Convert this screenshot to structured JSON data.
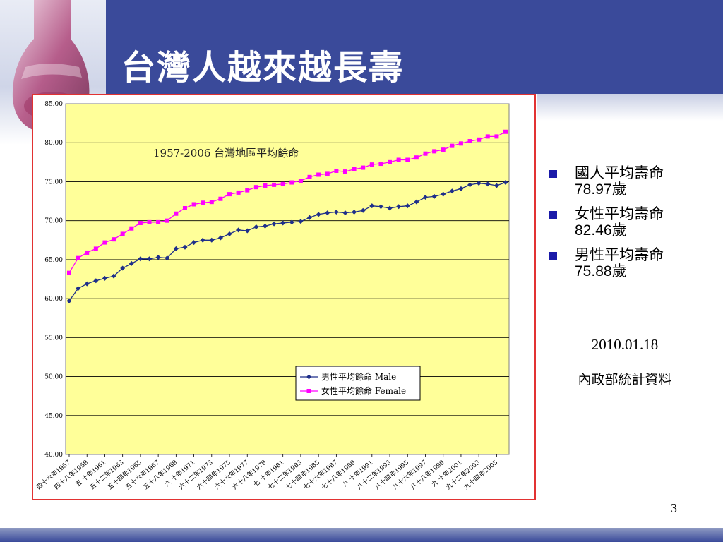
{
  "slide": {
    "title": "台灣人越來越長壽",
    "page_number": "3",
    "date": "2010.01.18",
    "source": "內政部統計資料"
  },
  "stats": [
    {
      "label": "國人平均壽命",
      "value": "78.97",
      "unit": "歲"
    },
    {
      "label": "女性平均壽命",
      "value": "82.46",
      "unit": "歲"
    },
    {
      "label": "男性平均壽命",
      "value": "75.88",
      "unit": "歲"
    }
  ],
  "colors": {
    "banner": "#3a4a9a",
    "plot_background": "#ffff99",
    "male_series": "#1f2f8a",
    "female_series": "#ff00ff",
    "frame": "#e23232",
    "bullet": "#1a1aa8"
  },
  "chart_data": {
    "type": "line",
    "title": "1957-2006 台灣地區平均餘命",
    "xlabel": "",
    "ylabel": "",
    "ylim": [
      40,
      85
    ],
    "yticks": [
      "40.00",
      "45.00",
      "50.00",
      "55.00",
      "60.00",
      "65.00",
      "70.00",
      "75.00",
      "80.00",
      "85.00"
    ],
    "grid": true,
    "legend_position": "bottom-center",
    "x": [
      1957,
      1958,
      1959,
      1960,
      1961,
      1962,
      1963,
      1964,
      1965,
      1966,
      1967,
      1968,
      1969,
      1970,
      1971,
      1972,
      1973,
      1974,
      1975,
      1976,
      1977,
      1978,
      1979,
      1980,
      1981,
      1982,
      1983,
      1984,
      1985,
      1986,
      1987,
      1988,
      1989,
      1990,
      1991,
      1992,
      1993,
      1994,
      1995,
      1996,
      1997,
      1998,
      1999,
      2000,
      2001,
      2002,
      2003,
      2004,
      2005,
      2006
    ],
    "xtick_labels": [
      "四十六年1957",
      "四十八年1959",
      "五 十年1961",
      "五十二年1963",
      "五十四年1965",
      "五十六年1967",
      "五十八年1969",
      "六 十年1971",
      "六十二年1973",
      "六十四年1975",
      "六十六年1977",
      "六十八年1979",
      "七 十年1981",
      "七十二年1983",
      "七十四年1985",
      "七十六年1987",
      "七十八年1989",
      "八 十年1991",
      "八十二年1993",
      "八十四年1995",
      "八十六年1997",
      "八十八年1999",
      "九 十年2001",
      "九十二年2003",
      "九十四年2005"
    ],
    "series": [
      {
        "name": "男性平均餘命 Male",
        "values": [
          59.7,
          61.3,
          61.9,
          62.3,
          62.6,
          62.9,
          63.9,
          64.5,
          65.1,
          65.1,
          65.3,
          65.2,
          66.4,
          66.6,
          67.2,
          67.5,
          67.5,
          67.8,
          68.3,
          68.8,
          68.7,
          69.2,
          69.3,
          69.6,
          69.7,
          69.8,
          69.9,
          70.4,
          70.8,
          71.0,
          71.1,
          71.0,
          71.1,
          71.3,
          71.9,
          71.8,
          71.6,
          71.8,
          71.9,
          72.4,
          73.0,
          73.1,
          73.4,
          73.8,
          74.1,
          74.6,
          74.8,
          74.7,
          74.5,
          74.9
        ]
      },
      {
        "name": "女性平均餘命 Female",
        "values": [
          63.3,
          65.2,
          65.9,
          66.4,
          67.2,
          67.6,
          68.3,
          69.0,
          69.7,
          69.8,
          69.8,
          70.0,
          70.9,
          71.6,
          72.1,
          72.3,
          72.4,
          72.8,
          73.4,
          73.6,
          73.9,
          74.3,
          74.5,
          74.6,
          74.7,
          74.9,
          75.1,
          75.6,
          75.9,
          76.0,
          76.4,
          76.3,
          76.6,
          76.8,
          77.2,
          77.3,
          77.5,
          77.8,
          77.8,
          78.1,
          78.6,
          78.9,
          79.1,
          79.6,
          79.9,
          80.2,
          80.4,
          80.8,
          80.8,
          81.4
        ]
      }
    ]
  }
}
